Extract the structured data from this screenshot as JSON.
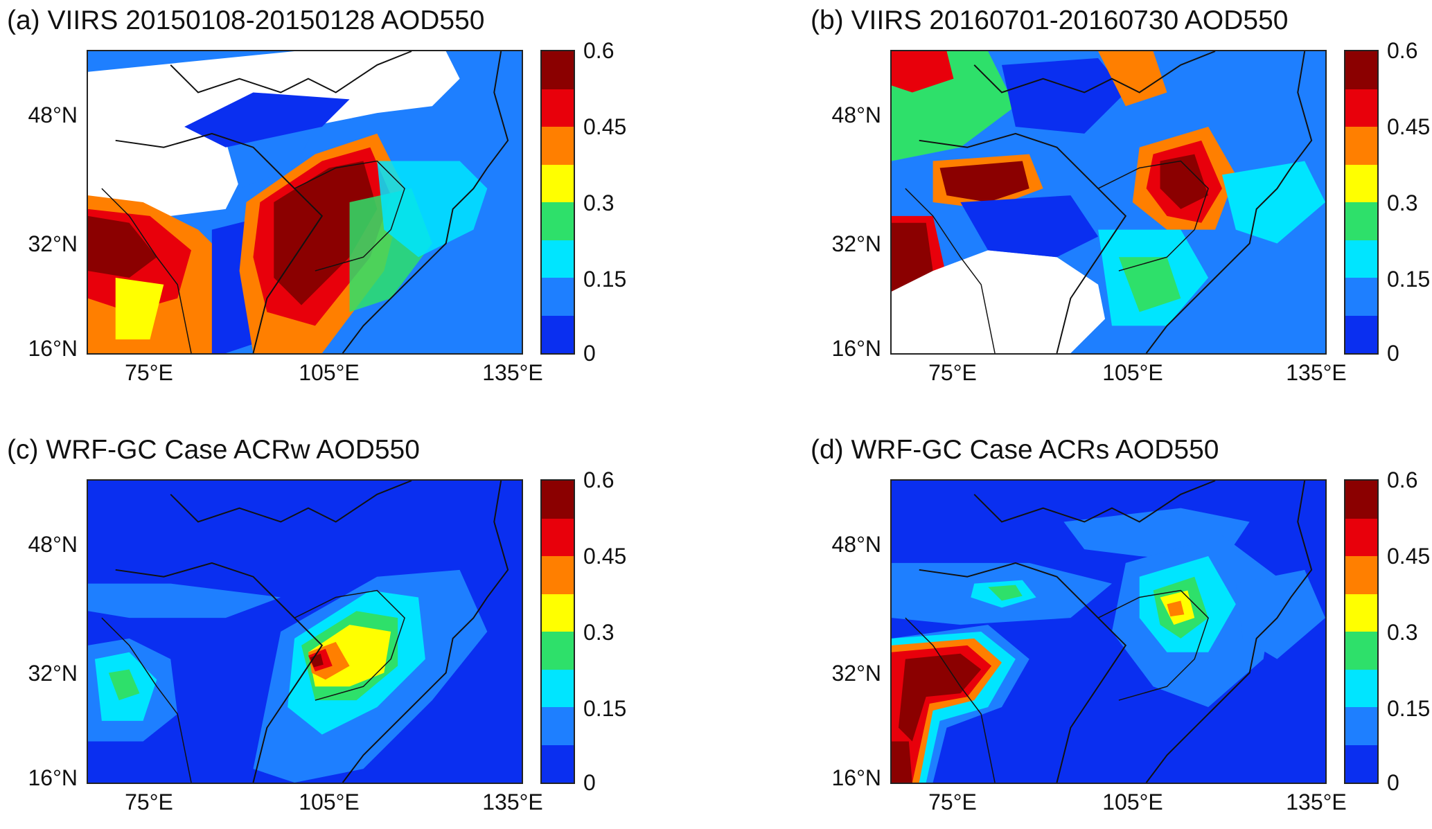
{
  "colorbar": {
    "ticks": [
      "0.6",
      "0.45",
      "0.3",
      "0.15",
      "0"
    ],
    "colors": [
      "#8b0000",
      "#e8000b",
      "#ff7f00",
      "#ffff00",
      "#2ee06a",
      "#00e5ff",
      "#1e7fff",
      "#0a2ff0"
    ]
  },
  "axes": {
    "lat_labels": [
      "48°N",
      "32°N",
      "16°N"
    ],
    "lon_labels": [
      "75°E",
      "105°E",
      "135°E"
    ]
  },
  "panels": [
    {
      "id": "a",
      "title": "(a) VIIRS 20150108-20150128 AOD550"
    },
    {
      "id": "b",
      "title": "(b) VIIRS 20160701-20160730 AOD550"
    },
    {
      "id": "c",
      "title": "(c) WRF-GC Case ACRw AOD550"
    },
    {
      "id": "d",
      "title": "(d) WRF-GC Case ACRs AOD550"
    }
  ]
}
